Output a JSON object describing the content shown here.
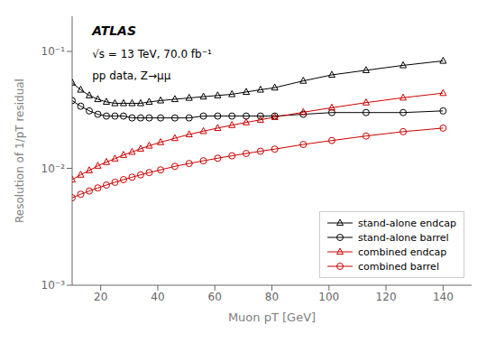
{
  "chart_data": {
    "type": "line",
    "x_label": "Muon pT [GeV]",
    "y_label": "Resolution of 1/pT residual",
    "annotations": [
      "ATLAS",
      "√s = 13 TeV, 70.0 fb⁻¹",
      "pp data, Z→μμ"
    ],
    "x": [
      10,
      13,
      16,
      19,
      22,
      25,
      28,
      31,
      34,
      37,
      41,
      46,
      51,
      56,
      61,
      66,
      71,
      76,
      81,
      91,
      101,
      113,
      126,
      140
    ],
    "series": [
      {
        "name": "stand-alone endcap",
        "color": "#000000",
        "marker": "triangle",
        "line_style": "solid",
        "values": [
          0.054,
          0.047,
          0.042,
          0.039,
          0.037,
          0.036,
          0.036,
          0.036,
          0.036,
          0.037,
          0.038,
          0.039,
          0.04,
          0.041,
          0.042,
          0.043,
          0.045,
          0.047,
          0.049,
          0.056,
          0.063,
          0.069,
          0.076,
          0.083
        ]
      },
      {
        "name": "stand-alone barrel",
        "color": "#000000",
        "marker": "circle",
        "line_style": "solid",
        "values": [
          0.038,
          0.034,
          0.031,
          0.029,
          0.028,
          0.028,
          0.028,
          0.027,
          0.027,
          0.027,
          0.027,
          0.027,
          0.027,
          0.028,
          0.028,
          0.028,
          0.028,
          0.028,
          0.028,
          0.029,
          0.03,
          0.03,
          0.03,
          0.031
        ]
      },
      {
        "name": "combined endcap",
        "color": "#cc0000",
        "marker": "triangle",
        "line_style": "solid",
        "values": [
          0.008,
          0.0088,
          0.0096,
          0.0105,
          0.0113,
          0.0121,
          0.013,
          0.0138,
          0.0147,
          0.0156,
          0.0167,
          0.0181,
          0.0195,
          0.0208,
          0.0221,
          0.0234,
          0.0247,
          0.026,
          0.0274,
          0.0302,
          0.033,
          0.0365,
          0.0402,
          0.044
        ]
      },
      {
        "name": "combined barrel",
        "color": "#cc0000",
        "marker": "circle",
        "line_style": "solid",
        "values": [
          0.0056,
          0.006,
          0.0064,
          0.0068,
          0.0072,
          0.0076,
          0.008,
          0.0084,
          0.0088,
          0.0092,
          0.0097,
          0.0104,
          0.011,
          0.0116,
          0.0122,
          0.0128,
          0.0134,
          0.014,
          0.0146,
          0.016,
          0.0173,
          0.0189,
          0.0206,
          0.0221
        ]
      }
    ],
    "xlim": [
      10,
      150
    ],
    "xticks": [
      20,
      40,
      60,
      80,
      100,
      120,
      140
    ],
    "ylim": [
      0.001,
      0.2
    ],
    "yticks": [
      {
        "value": 0.001,
        "label": "10⁻³"
      },
      {
        "value": 0.01,
        "label": "10⁻²"
      },
      {
        "value": 0.1,
        "label": "10⁻¹"
      }
    ],
    "log": "y",
    "grid": false,
    "legend": "lower right"
  }
}
